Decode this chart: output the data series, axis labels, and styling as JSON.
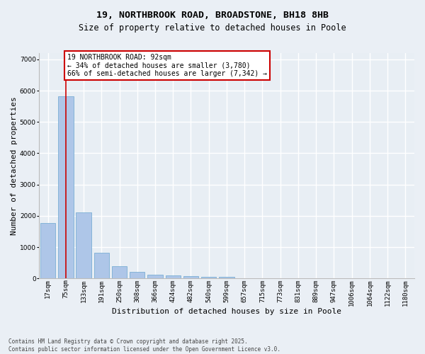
{
  "title_line1": "19, NORTHBROOK ROAD, BROADSTONE, BH18 8HB",
  "title_line2": "Size of property relative to detached houses in Poole",
  "xlabel": "Distribution of detached houses by size in Poole",
  "ylabel": "Number of detached properties",
  "categories": [
    "17sqm",
    "75sqm",
    "133sqm",
    "191sqm",
    "250sqm",
    "308sqm",
    "366sqm",
    "424sqm",
    "482sqm",
    "540sqm",
    "599sqm",
    "657sqm",
    "715sqm",
    "773sqm",
    "831sqm",
    "889sqm",
    "947sqm",
    "1006sqm",
    "1064sqm",
    "1122sqm",
    "1180sqm"
  ],
  "values": [
    1780,
    5820,
    2100,
    830,
    380,
    210,
    115,
    90,
    70,
    55,
    45,
    0,
    0,
    0,
    0,
    0,
    0,
    0,
    0,
    0,
    0
  ],
  "bar_color": "#aec6e8",
  "bar_edge_color": "#7bafd4",
  "vline_index": 1,
  "vline_color": "#cc0000",
  "annotation_text": "19 NORTHBROOK ROAD: 92sqm\n← 34% of detached houses are smaller (3,780)\n66% of semi-detached houses are larger (7,342) →",
  "annotation_box_facecolor": "#ffffff",
  "annotation_box_edgecolor": "#cc0000",
  "ylim": [
    0,
    7200
  ],
  "yticks": [
    0,
    1000,
    2000,
    3000,
    4000,
    5000,
    6000,
    7000
  ],
  "bg_color": "#e8eef4",
  "fig_bg_color": "#eaeff5",
  "grid_color": "#ffffff",
  "footer_text": "Contains HM Land Registry data © Crown copyright and database right 2025.\nContains public sector information licensed under the Open Government Licence v3.0.",
  "title_fontsize": 9.5,
  "subtitle_fontsize": 8.5,
  "axis_label_fontsize": 8,
  "tick_fontsize": 6.5,
  "annotation_fontsize": 7,
  "footer_fontsize": 5.5
}
